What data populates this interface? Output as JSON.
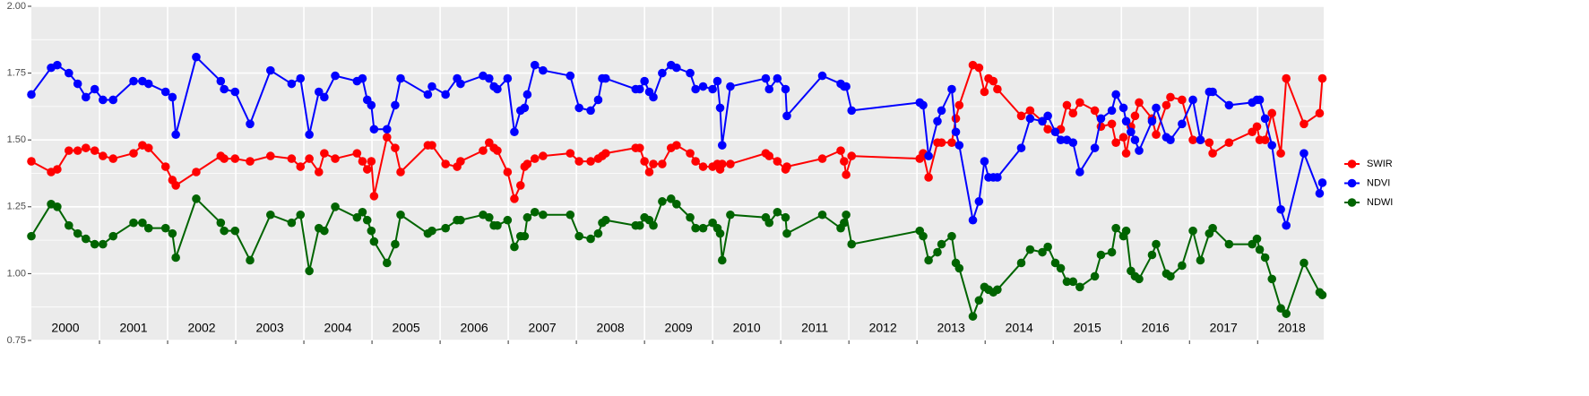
{
  "chart_data": {
    "type": "line",
    "x": [
      2000.0,
      2000.29,
      2000.38,
      2000.55,
      2000.68,
      2000.8,
      2000.93,
      2001.05,
      2001.2,
      2001.5,
      2001.63,
      2001.72,
      2001.97,
      2002.07,
      2002.12,
      2002.42,
      2002.78,
      2002.83,
      2002.99,
      2003.21,
      2003.51,
      2003.82,
      2003.95,
      2004.08,
      2004.22,
      2004.3,
      2004.46,
      2004.78,
      2004.86,
      2004.93,
      2004.99,
      2005.03,
      2005.22,
      2005.34,
      2005.42,
      2005.82,
      2005.88,
      2006.08,
      2006.25,
      2006.3,
      2006.63,
      2006.72,
      2006.79,
      2006.84,
      2006.99,
      2007.09,
      2007.18,
      2007.24,
      2007.28,
      2007.39,
      2007.51,
      2007.91,
      2008.04,
      2008.21,
      2008.32,
      2008.38,
      2008.43,
      2008.87,
      2008.93,
      2009.0,
      2009.07,
      2009.13,
      2009.26,
      2009.39,
      2009.47,
      2009.67,
      2009.75,
      2009.86,
      2010.0,
      2010.07,
      2010.11,
      2010.14,
      2010.26,
      2010.78,
      2010.83,
      2010.95,
      2011.07,
      2011.09,
      2011.61,
      2011.88,
      2011.93,
      2011.96,
      2012.04,
      2013.04,
      2013.09,
      2013.17,
      2013.3,
      2013.36,
      2013.51,
      2013.57,
      2013.62,
      2013.82,
      2013.91,
      2013.99,
      2014.05,
      2014.12,
      2014.18,
      2014.53,
      2014.66,
      2014.84,
      2014.92,
      2015.03,
      2015.11,
      2015.2,
      2015.29,
      2015.39,
      2015.61,
      2015.7,
      2015.86,
      2015.92,
      2016.03,
      2016.07,
      2016.14,
      2016.2,
      2016.26,
      2016.45,
      2016.51,
      2016.66,
      2016.72,
      2016.89,
      2017.05,
      2017.16,
      2017.29,
      2017.34,
      2017.58,
      2017.92,
      2017.99,
      2018.03,
      2018.11,
      2018.21,
      2018.34,
      2018.42,
      2018.68,
      2018.91,
      2018.95
    ],
    "series": [
      {
        "name": "SWIR",
        "color": "#ff0000",
        "values": [
          1.42,
          1.38,
          1.39,
          1.46,
          1.46,
          1.47,
          1.46,
          1.44,
          1.43,
          1.45,
          1.48,
          1.47,
          1.4,
          1.35,
          1.33,
          1.38,
          1.44,
          1.43,
          1.43,
          1.42,
          1.44,
          1.43,
          1.4,
          1.43,
          1.38,
          1.45,
          1.43,
          1.45,
          1.42,
          1.39,
          1.42,
          1.29,
          1.51,
          1.47,
          1.38,
          1.48,
          1.48,
          1.41,
          1.4,
          1.42,
          1.46,
          1.49,
          1.47,
          1.46,
          1.38,
          1.28,
          1.33,
          1.4,
          1.41,
          1.43,
          1.44,
          1.45,
          1.42,
          1.42,
          1.43,
          1.44,
          1.45,
          1.47,
          1.47,
          1.42,
          1.38,
          1.41,
          1.41,
          1.47,
          1.48,
          1.45,
          1.42,
          1.4,
          1.4,
          1.41,
          1.39,
          1.41,
          1.41,
          1.45,
          1.44,
          1.42,
          1.39,
          1.4,
          1.43,
          1.46,
          1.42,
          1.37,
          1.44,
          1.43,
          1.45,
          1.36,
          1.49,
          1.49,
          1.49,
          1.58,
          1.63,
          1.78,
          1.77,
          1.68,
          1.73,
          1.72,
          1.69,
          1.59,
          1.61,
          1.57,
          1.54,
          1.53,
          1.54,
          1.63,
          1.6,
          1.64,
          1.61,
          1.55,
          1.56,
          1.49,
          1.51,
          1.45,
          1.55,
          1.59,
          1.64,
          1.58,
          1.52,
          1.63,
          1.66,
          1.65,
          1.5,
          1.5,
          1.49,
          1.45,
          1.49,
          1.53,
          1.55,
          1.5,
          1.5,
          1.6,
          1.45,
          1.73,
          1.56,
          1.6,
          1.73
        ]
      },
      {
        "name": "NDVI",
        "color": "#0000ff",
        "values": [
          1.67,
          1.77,
          1.78,
          1.75,
          1.71,
          1.66,
          1.69,
          1.65,
          1.65,
          1.72,
          1.72,
          1.71,
          1.68,
          1.66,
          1.52,
          1.81,
          1.72,
          1.69,
          1.68,
          1.56,
          1.76,
          1.71,
          1.73,
          1.52,
          1.68,
          1.66,
          1.74,
          1.72,
          1.73,
          1.65,
          1.63,
          1.54,
          1.54,
          1.63,
          1.73,
          1.67,
          1.7,
          1.67,
          1.73,
          1.71,
          1.74,
          1.73,
          1.7,
          1.69,
          1.73,
          1.53,
          1.61,
          1.62,
          1.67,
          1.78,
          1.76,
          1.74,
          1.62,
          1.61,
          1.65,
          1.73,
          1.73,
          1.69,
          1.69,
          1.72,
          1.68,
          1.66,
          1.75,
          1.78,
          1.77,
          1.75,
          1.69,
          1.7,
          1.69,
          1.72,
          1.62,
          1.48,
          1.7,
          1.73,
          1.69,
          1.73,
          1.69,
          1.59,
          1.74,
          1.71,
          1.7,
          1.7,
          1.61,
          1.64,
          1.63,
          1.44,
          1.57,
          1.61,
          1.69,
          1.53,
          1.48,
          1.2,
          1.27,
          1.42,
          1.36,
          1.36,
          1.36,
          1.47,
          1.58,
          1.57,
          1.59,
          1.53,
          1.5,
          1.5,
          1.49,
          1.38,
          1.47,
          1.58,
          1.61,
          1.67,
          1.62,
          1.57,
          1.53,
          1.5,
          1.46,
          1.57,
          1.62,
          1.51,
          1.5,
          1.56,
          1.65,
          1.5,
          1.68,
          1.68,
          1.63,
          1.64,
          1.65,
          1.65,
          1.58,
          1.48,
          1.24,
          1.18,
          1.45,
          1.3,
          1.34
        ]
      },
      {
        "name": "NDWI",
        "color": "#006400",
        "values": [
          1.14,
          1.26,
          1.25,
          1.18,
          1.15,
          1.13,
          1.11,
          1.11,
          1.14,
          1.19,
          1.19,
          1.17,
          1.17,
          1.15,
          1.06,
          1.28,
          1.19,
          1.16,
          1.16,
          1.05,
          1.22,
          1.19,
          1.22,
          1.01,
          1.17,
          1.16,
          1.25,
          1.21,
          1.23,
          1.2,
          1.16,
          1.12,
          1.04,
          1.11,
          1.22,
          1.15,
          1.16,
          1.17,
          1.2,
          1.2,
          1.22,
          1.21,
          1.18,
          1.18,
          1.2,
          1.1,
          1.14,
          1.14,
          1.21,
          1.23,
          1.22,
          1.22,
          1.14,
          1.13,
          1.15,
          1.19,
          1.2,
          1.18,
          1.18,
          1.21,
          1.2,
          1.18,
          1.27,
          1.28,
          1.26,
          1.21,
          1.17,
          1.17,
          1.19,
          1.17,
          1.15,
          1.05,
          1.22,
          1.21,
          1.19,
          1.23,
          1.21,
          1.15,
          1.22,
          1.17,
          1.19,
          1.22,
          1.11,
          1.16,
          1.14,
          1.05,
          1.08,
          1.11,
          1.14,
          1.04,
          1.02,
          0.84,
          0.9,
          0.95,
          0.94,
          0.93,
          0.94,
          1.04,
          1.09,
          1.08,
          1.1,
          1.04,
          1.02,
          0.97,
          0.97,
          0.95,
          0.99,
          1.07,
          1.08,
          1.17,
          1.14,
          1.16,
          1.01,
          0.99,
          0.98,
          1.07,
          1.11,
          1.0,
          0.99,
          1.03,
          1.16,
          1.05,
          1.15,
          1.17,
          1.11,
          1.11,
          1.13,
          1.09,
          1.06,
          0.98,
          0.87,
          0.85,
          1.04,
          0.93,
          0.92
        ]
      }
    ],
    "xlim": [
      2000,
      2018.97
    ],
    "xticks": [
      2001,
      2002,
      2003,
      2004,
      2005,
      2006,
      2007,
      2008,
      2009,
      2010,
      2011,
      2012,
      2013,
      2014,
      2015,
      2016,
      2017,
      2018
    ],
    "ylim": [
      0.75,
      2
    ],
    "yticks": [
      {
        "value": 0.75,
        "label": "0.75"
      },
      {
        "value": 1,
        "label": "1.00"
      },
      {
        "value": 1.25,
        "label": "1.25"
      },
      {
        "value": 1.5,
        "label": "1.50"
      },
      {
        "value": 1.75,
        "label": "1.75"
      },
      {
        "value": 2,
        "label": "2.00"
      }
    ],
    "year_labels": [
      "2000",
      "2001",
      "2002",
      "2003",
      "2004",
      "2005",
      "2006",
      "2007",
      "2008",
      "2009",
      "2010",
      "2011",
      "2012",
      "2013",
      "2014",
      "2015",
      "2016",
      "2017",
      "2018"
    ],
    "grid": true,
    "legend": "right"
  }
}
